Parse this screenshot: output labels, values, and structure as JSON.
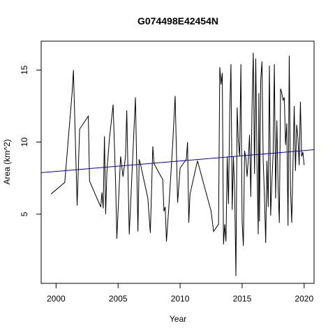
{
  "chart_data": {
    "type": "line",
    "title": "G074498E42454N",
    "xlabel": "Year",
    "ylabel": "Area (km^2)",
    "xlim": [
      1998.8,
      2020.8
    ],
    "ylim": [
      0.2,
      17.0
    ],
    "x_ticks": [
      2000,
      2005,
      2010,
      2015,
      2020
    ],
    "y_ticks": [
      5,
      10,
      15
    ],
    "grid": false,
    "series": [
      {
        "color": "#000000",
        "x": [
          1999.6,
          2000.7,
          2001.3,
          2001.4,
          2001.7,
          2001.9,
          2002.6,
          2002.7,
          2003.6,
          2003.7,
          2003.8,
          2003.9,
          2004.0,
          2004.1,
          2004.3,
          2004.6,
          2004.8,
          2004.9,
          2005.2,
          2005.4,
          2005.6,
          2005.7,
          2005.9,
          2006.4,
          2006.5,
          2006.6,
          2006.7,
          2006.8,
          2007.4,
          2007.6,
          2007.8,
          2007.9,
          2008.6,
          2008.7,
          2008.8,
          2008.9,
          2009.1,
          2009.4,
          2009.6,
          2009.8,
          2010.0,
          2010.5,
          2010.6,
          2010.7,
          2010.8,
          2011.4,
          2012.5,
          2012.7,
          2013.1,
          2013.2,
          2013.3,
          2013.4,
          2013.5,
          2013.6,
          2013.7,
          2013.8,
          2013.9,
          2014.0,
          2014.1,
          2014.2,
          2014.3,
          2014.4,
          2014.5,
          2014.6,
          2014.7,
          2014.8,
          2014.9,
          2015.0,
          2015.1,
          2015.2,
          2015.3,
          2015.4,
          2015.5,
          2015.6,
          2015.7,
          2015.8,
          2015.9,
          2016.0,
          2016.1,
          2016.2,
          2016.3,
          2016.35,
          2016.4,
          2016.5,
          2016.6,
          2016.7,
          2016.8,
          2016.9,
          2017.0,
          2017.1,
          2017.2,
          2017.3,
          2017.4,
          2017.5,
          2017.6,
          2017.7,
          2017.8,
          2017.9,
          2018.0,
          2018.1,
          2018.2,
          2018.3,
          2018.4,
          2018.5,
          2018.6,
          2018.7,
          2018.8,
          2018.9,
          2019.0,
          2019.2,
          2019.3,
          2019.4,
          2019.5,
          2019.6,
          2019.7,
          2019.8,
          2019.9,
          2020.0
        ],
        "y": [
          6.4,
          7.2,
          13.5,
          15.0,
          5.6,
          10.9,
          11.8,
          7.3,
          5.5,
          6.5,
          5.4,
          10.4,
          5.0,
          8.0,
          10.2,
          12.6,
          7.2,
          3.3,
          9.0,
          7.6,
          9.0,
          12.2,
          3.6,
          13.1,
          8.5,
          3.8,
          8.8,
          8.5,
          6.1,
          3.7,
          9.7,
          8.5,
          7.4,
          5.2,
          5.5,
          3.1,
          5.6,
          9.8,
          13.2,
          5.8,
          8.2,
          8.8,
          10.0,
          4.4,
          6.4,
          8.7,
          5.2,
          3.8,
          4.3,
          15.2,
          14.0,
          14.8,
          2.9,
          4.3,
          3.1,
          9.0,
          5.7,
          12.0,
          15.4,
          5.3,
          9.0,
          6.5,
          0.7,
          12.4,
          10.0,
          9.0,
          15.4,
          4.5,
          2.8,
          9.4,
          8.9,
          7.6,
          8.8,
          10.5,
          6.2,
          12.5,
          16.2,
          7.8,
          15.8,
          8.4,
          3.6,
          13.4,
          4.5,
          14.3,
          15.6,
          8.7,
          6.3,
          3.0,
          8.7,
          5.5,
          15.3,
          4.9,
          7.3,
          9.2,
          15.4,
          6.1,
          11.5,
          6.9,
          4.4,
          13.7,
          13.4,
          12.9,
          13.1,
          9.8,
          11.3,
          4.2,
          16.0,
          6.8,
          4.4,
          12.5,
          8.0,
          11.2,
          10.3,
          8.4,
          12.8,
          9.0,
          9.3,
          8.4
        ]
      },
      {
        "color": "#0000cc",
        "type": "trend",
        "x": [
          1998.8,
          2020.8
        ],
        "y": [
          7.88,
          9.47
        ]
      }
    ]
  }
}
